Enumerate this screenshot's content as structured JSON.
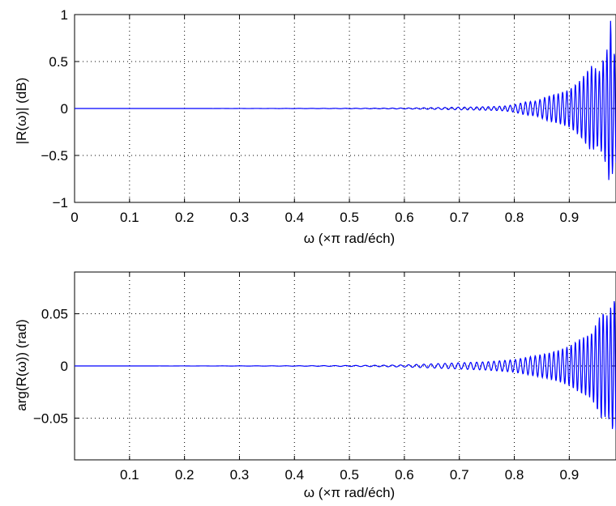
{
  "chart_data": [
    {
      "type": "line",
      "xlabel": "ω (×π rad/éch)",
      "ylabel": "|R(ω)| (dB)",
      "xlim": [
        0,
        0.985
      ],
      "ylim": [
        -1,
        1
      ],
      "xticks": [
        "0",
        "0.1",
        "0.2",
        "0.3",
        "0.4",
        "0.5",
        "0.6",
        "0.7",
        "0.8",
        "0.9"
      ],
      "yticks": [
        "−1",
        "−0.5",
        "0",
        "0.5",
        "1"
      ],
      "grid": true,
      "color": "#0000ff",
      "series": [
        {
          "x": [
            0.6,
            0.62,
            0.64,
            0.66,
            0.68,
            0.7,
            0.72,
            0.74,
            0.76,
            0.78,
            0.8,
            0.82,
            0.84,
            0.86,
            0.88,
            0.9,
            0.92,
            0.94,
            0.955,
            0.96,
            0.97,
            0.975,
            0.98
          ],
          "y": [
            0.005,
            -0.006,
            0.008,
            -0.01,
            0.012,
            -0.014,
            0.015,
            -0.018,
            0.02,
            -0.025,
            0.04,
            -0.07,
            0.08,
            0.13,
            0.16,
            0.2,
            0.3,
            0.46,
            -0.4,
            0.5,
            -0.65,
            0.95,
            -0.6
          ]
        }
      ]
    },
    {
      "type": "line",
      "xlabel": "ω (×π rad/éch)",
      "ylabel": "arg(R(ω)) (rad)",
      "xlim": [
        0,
        0.985
      ],
      "ylim": [
        -0.09,
        0.09
      ],
      "xticks": [
        "0.1",
        "0.2",
        "0.3",
        "0.4",
        "0.5",
        "0.6",
        "0.7",
        "0.8",
        "0.9"
      ],
      "yticks": [
        "−0.05",
        "0",
        "0.05"
      ],
      "grid": true,
      "color": "#0000ff",
      "series": [
        {
          "x": [
            0.6,
            0.65,
            0.7,
            0.75,
            0.8,
            0.82,
            0.84,
            0.86,
            0.88,
            0.9,
            0.92,
            0.94,
            0.96,
            0.97,
            0.98
          ],
          "y": [
            0.001,
            -0.002,
            0.003,
            -0.004,
            0.006,
            0.008,
            0.01,
            0.012,
            0.015,
            0.019,
            0.026,
            0.031,
            -0.052,
            0.048,
            -0.064
          ]
        }
      ]
    }
  ]
}
